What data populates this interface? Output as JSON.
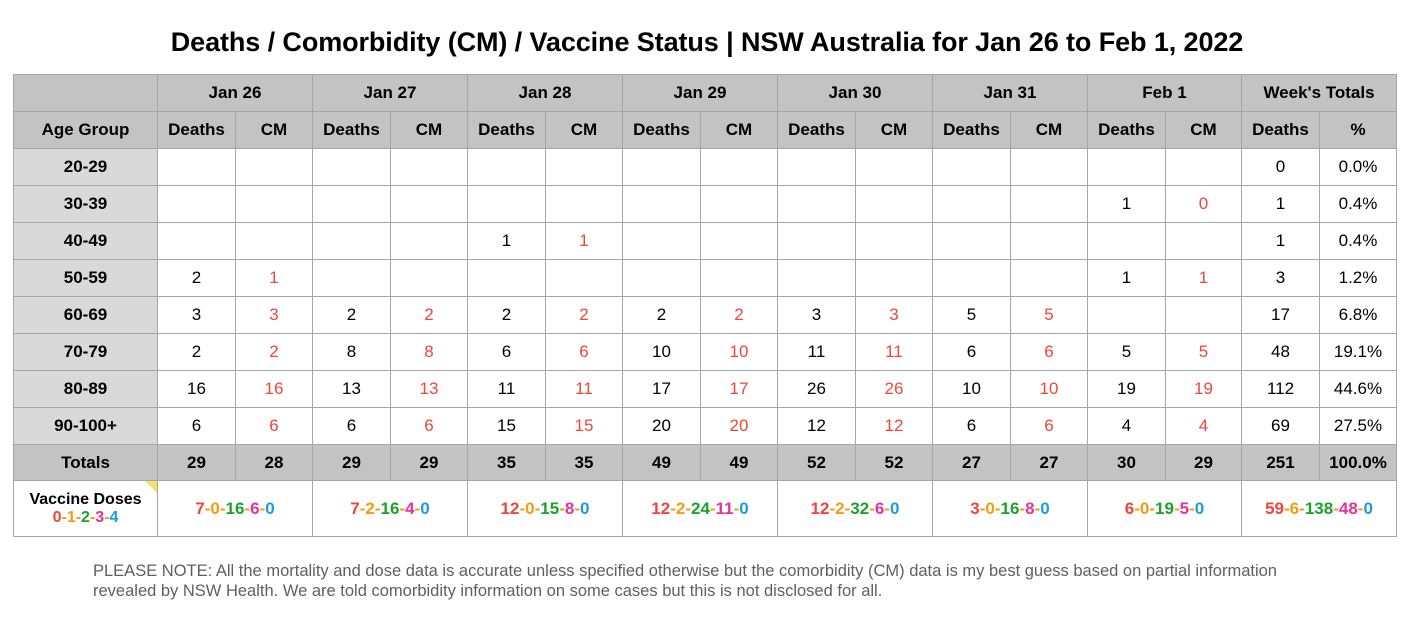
{
  "title": "Deaths / Comorbidity (CM) / Vaccine Status | NSW Australia for Jan 26 to Feb 1, 2022",
  "chart_data": {
    "type": "table",
    "title": "Deaths / Comorbidity (CM) / Vaccine Status | NSW Australia for Jan 26 to Feb 1, 2022",
    "row_header_label": "Age Group",
    "days": [
      "Jan 26",
      "Jan 27",
      "Jan 28",
      "Jan 29",
      "Jan 30",
      "Jan 31",
      "Feb 1"
    ],
    "sub_headers": {
      "deaths": "Deaths",
      "cm": "CM",
      "pct": "%"
    },
    "totals_header": "Week's Totals",
    "rows": [
      {
        "age": "20-29",
        "cells": [
          [
            "",
            ""
          ],
          [
            "",
            ""
          ],
          [
            "",
            ""
          ],
          [
            "",
            ""
          ],
          [
            "",
            ""
          ],
          [
            "",
            ""
          ],
          [
            "",
            ""
          ]
        ],
        "week_deaths": "0",
        "week_pct": "0.0%"
      },
      {
        "age": "30-39",
        "cells": [
          [
            "",
            ""
          ],
          [
            "",
            ""
          ],
          [
            "",
            ""
          ],
          [
            "",
            ""
          ],
          [
            "",
            ""
          ],
          [
            "",
            ""
          ],
          [
            "1",
            "0"
          ]
        ],
        "week_deaths": "1",
        "week_pct": "0.4%"
      },
      {
        "age": "40-49",
        "cells": [
          [
            "",
            ""
          ],
          [
            "",
            ""
          ],
          [
            "1",
            "1"
          ],
          [
            "",
            ""
          ],
          [
            "",
            ""
          ],
          [
            "",
            ""
          ],
          [
            "",
            ""
          ]
        ],
        "week_deaths": "1",
        "week_pct": "0.4%"
      },
      {
        "age": "50-59",
        "cells": [
          [
            "2",
            "1"
          ],
          [
            "",
            ""
          ],
          [
            "",
            ""
          ],
          [
            "",
            ""
          ],
          [
            "",
            ""
          ],
          [
            "",
            ""
          ],
          [
            "1",
            "1"
          ]
        ],
        "week_deaths": "3",
        "week_pct": "1.2%"
      },
      {
        "age": "60-69",
        "cells": [
          [
            "3",
            "3"
          ],
          [
            "2",
            "2"
          ],
          [
            "2",
            "2"
          ],
          [
            "2",
            "2"
          ],
          [
            "3",
            "3"
          ],
          [
            "5",
            "5"
          ],
          [
            "",
            ""
          ]
        ],
        "week_deaths": "17",
        "week_pct": "6.8%"
      },
      {
        "age": "70-79",
        "cells": [
          [
            "2",
            "2"
          ],
          [
            "8",
            "8"
          ],
          [
            "6",
            "6"
          ],
          [
            "10",
            "10"
          ],
          [
            "11",
            "11"
          ],
          [
            "6",
            "6"
          ],
          [
            "5",
            "5"
          ]
        ],
        "week_deaths": "48",
        "week_pct": "19.1%"
      },
      {
        "age": "80-89",
        "cells": [
          [
            "16",
            "16"
          ],
          [
            "13",
            "13"
          ],
          [
            "11",
            "11"
          ],
          [
            "17",
            "17"
          ],
          [
            "26",
            "26"
          ],
          [
            "10",
            "10"
          ],
          [
            "19",
            "19"
          ]
        ],
        "week_deaths": "112",
        "week_pct": "44.6%"
      },
      {
        "age": "90-100+",
        "cells": [
          [
            "6",
            "6"
          ],
          [
            "6",
            "6"
          ],
          [
            "15",
            "15"
          ],
          [
            "20",
            "20"
          ],
          [
            "12",
            "12"
          ],
          [
            "6",
            "6"
          ],
          [
            "4",
            "4"
          ]
        ],
        "week_deaths": "69",
        "week_pct": "27.5%"
      }
    ],
    "totals": {
      "label": "Totals",
      "cells": [
        [
          "29",
          "28"
        ],
        [
          "29",
          "29"
        ],
        [
          "35",
          "35"
        ],
        [
          "49",
          "49"
        ],
        [
          "52",
          "52"
        ],
        [
          "27",
          "27"
        ],
        [
          "30",
          "29"
        ]
      ],
      "week_deaths": "251",
      "week_pct": "100.0%"
    },
    "vaccine": {
      "label": "Vaccine Doses",
      "dose_legend": [
        "0",
        "1",
        "2",
        "3",
        "4"
      ],
      "days": [
        [
          "7",
          "0",
          "16",
          "6",
          "0"
        ],
        [
          "7",
          "2",
          "16",
          "4",
          "0"
        ],
        [
          "12",
          "0",
          "15",
          "8",
          "0"
        ],
        [
          "12",
          "2",
          "24",
          "11",
          "0"
        ],
        [
          "12",
          "2",
          "32",
          "6",
          "0"
        ],
        [
          "3",
          "0",
          "16",
          "8",
          "0"
        ],
        [
          "6",
          "0",
          "19",
          "5",
          "0"
        ]
      ],
      "week": [
        "59",
        "6",
        "138",
        "48",
        "0"
      ]
    },
    "colors": {
      "header_bg": "#c3c3c3",
      "row_label_bg": "#d9d9d9",
      "cm_text": "#f0453a",
      "dose_colors": [
        "#f0453a",
        "#f39c12",
        "#1aa32a",
        "#e6329b",
        "#1a9be6"
      ],
      "note_text": "#5f5f5f"
    }
  },
  "note": "PLEASE NOTE: All the mortality and dose data is accurate unless specified otherwise but the comorbidity (CM) data is my best guess based on partial information revealed by NSW Health. We are told comorbidity information on some cases but this is not disclosed for all."
}
